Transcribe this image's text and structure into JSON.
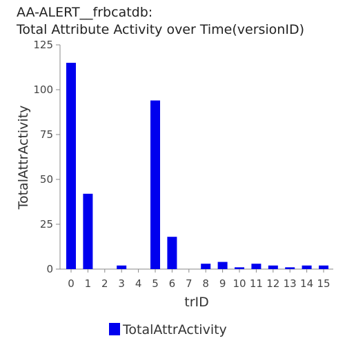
{
  "chart_data": {
    "type": "bar",
    "title_lines": [
      "AA-ALERT__frbcatdb:",
      "Total Attribute Activity over Time(versionID)"
    ],
    "xlabel": "trID",
    "ylabel": "TotalAttrActivity",
    "categories": [
      "0",
      "1",
      "2",
      "3",
      "4",
      "5",
      "6",
      "7",
      "8",
      "9",
      "10",
      "11",
      "12",
      "13",
      "14",
      "15"
    ],
    "series": [
      {
        "name": "TotalAttrActivity",
        "values": [
          115,
          42,
          0,
          2,
          0,
          94,
          18,
          0,
          3,
          4,
          1,
          3,
          2,
          1,
          2,
          2
        ]
      }
    ],
    "ylim": [
      0,
      125
    ],
    "yticks": [
      "0",
      "25",
      "50",
      "75",
      "100",
      "125"
    ],
    "grid": false,
    "legend": "bottom-center",
    "bar_color": "#0000ee"
  }
}
